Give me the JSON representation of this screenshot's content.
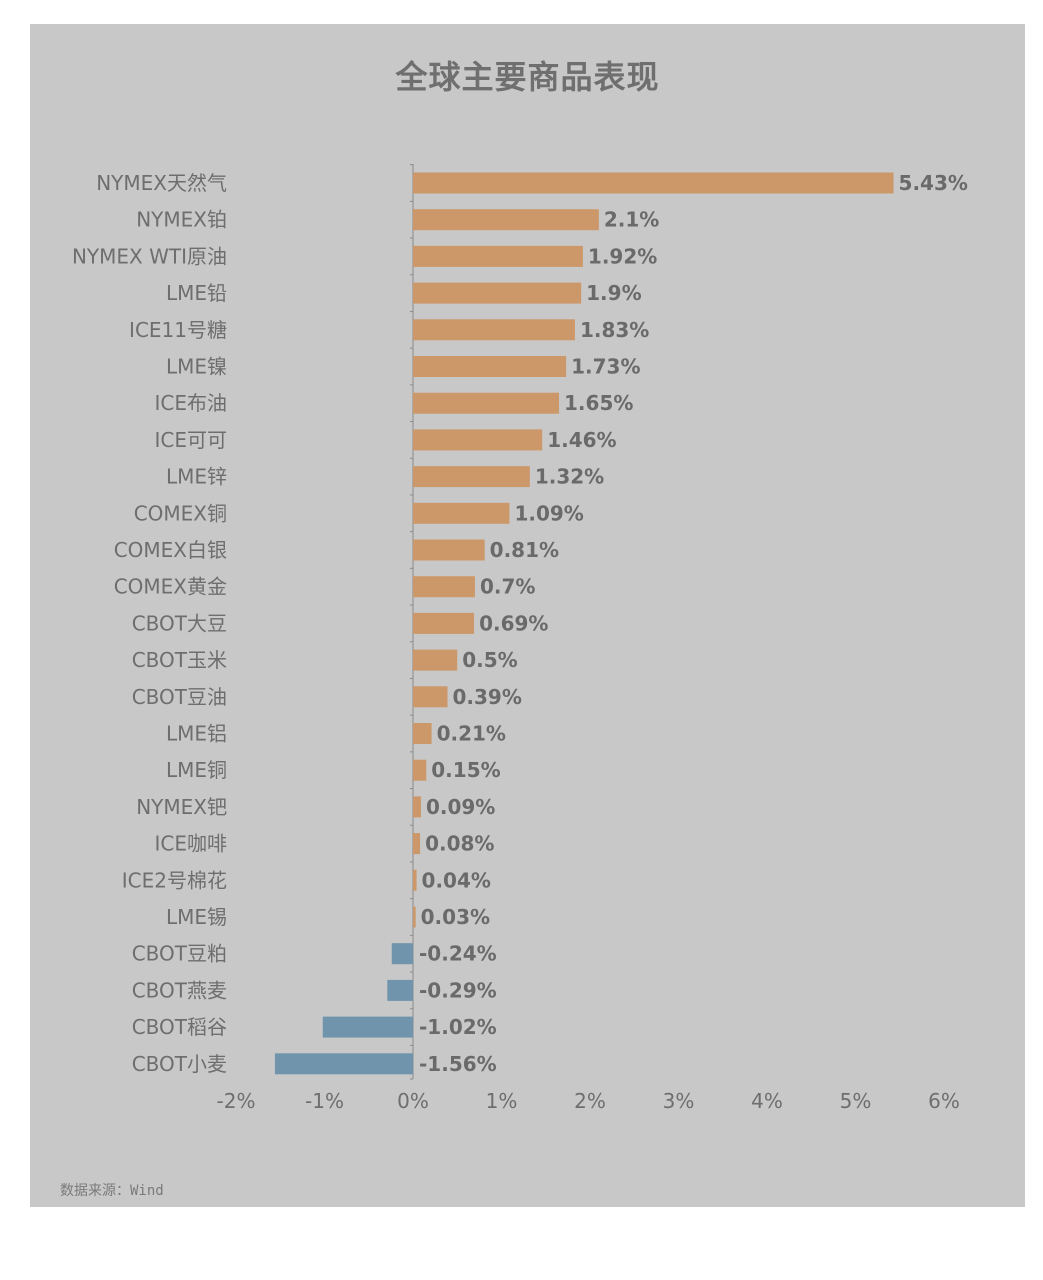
{
  "source_text": "数据来源：Wind",
  "colors": {
    "positive": "#cc9869",
    "negative": "#6f94ab",
    "axis": "#8a8a8a",
    "background": "#c8c8c8"
  },
  "chart_data": {
    "type": "bar",
    "orientation": "horizontal",
    "title": "全球主要商品表现",
    "xlabel": "",
    "ylabel": "",
    "xlim": [
      -2,
      6
    ],
    "x_ticks": [
      "-2%",
      "-1%",
      "0%",
      "1%",
      "2%",
      "3%",
      "4%",
      "5%",
      "6%"
    ],
    "grid": false,
    "categories": [
      "NYMEX天然气",
      "NYMEX铂",
      "NYMEX WTI原油",
      "LME铅",
      "ICE11号糖",
      "LME镍",
      "ICE布油",
      "ICE可可",
      "LME锌",
      "COMEX铜",
      "COMEX白银",
      "COMEX黄金",
      "CBOT大豆",
      "CBOT玉米",
      "CBOT豆油",
      "LME铝",
      "LME铜",
      "NYMEX钯",
      "ICE咖啡",
      "ICE2号棉花",
      "LME锡",
      "CBOT豆粕",
      "CBOT燕麦",
      "CBOT稻谷",
      "CBOT小麦"
    ],
    "values": [
      5.43,
      2.1,
      1.92,
      1.9,
      1.83,
      1.73,
      1.65,
      1.46,
      1.32,
      1.09,
      0.81,
      0.7,
      0.69,
      0.5,
      0.39,
      0.21,
      0.15,
      0.09,
      0.08,
      0.04,
      0.03,
      -0.24,
      -0.29,
      -1.02,
      -1.56
    ],
    "value_labels": [
      "5.43%",
      "2.1%",
      "1.92%",
      "1.9%",
      "1.83%",
      "1.73%",
      "1.65%",
      "1.46%",
      "1.32%",
      "1.09%",
      "0.81%",
      "0.7%",
      "0.69%",
      "0.5%",
      "0.39%",
      "0.21%",
      "0.15%",
      "0.09%",
      "0.08%",
      "0.04%",
      "0.03%",
      "-0.24%",
      "-0.29%",
      "-1.02%",
      "-1.56%"
    ]
  }
}
